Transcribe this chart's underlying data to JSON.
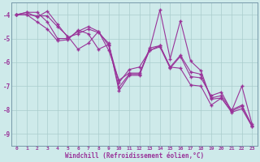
{
  "x": [
    0,
    1,
    2,
    3,
    4,
    5,
    6,
    7,
    8,
    9,
    10,
    11,
    12,
    13,
    14,
    15,
    16,
    17,
    18,
    19,
    20,
    21,
    22,
    23
  ],
  "line1": [
    -4.0,
    -3.9,
    -4.1,
    -3.85,
    -4.4,
    -4.95,
    -4.8,
    -4.6,
    -4.75,
    -5.2,
    -7.2,
    -6.55,
    -6.55,
    -5.45,
    -3.8,
    -5.85,
    -4.25,
    -5.95,
    -6.35,
    -7.55,
    -7.5,
    -8.05,
    -7.0,
    -8.6
  ],
  "line2": [
    -4.0,
    -4.0,
    -4.3,
    -4.6,
    -5.1,
    -5.05,
    -4.65,
    -4.8,
    -5.45,
    -5.25,
    -6.85,
    -6.3,
    -6.2,
    -5.5,
    -5.35,
    -6.25,
    -5.75,
    -6.6,
    -6.65,
    -7.4,
    -7.25,
    -8.05,
    -7.85,
    -8.7
  ],
  "line3": [
    -4.0,
    -4.0,
    -4.05,
    -4.05,
    -4.5,
    -4.9,
    -5.45,
    -5.2,
    -4.7,
    -5.5,
    -6.75,
    -6.45,
    -6.45,
    -5.5,
    -5.3,
    -6.2,
    -6.25,
    -6.95,
    -7.0,
    -7.8,
    -7.5,
    -8.1,
    -7.95,
    -8.7
  ],
  "line4": [
    -4.0,
    -3.9,
    -3.9,
    -4.3,
    -5.0,
    -5.0,
    -4.7,
    -4.5,
    -4.7,
    -5.3,
    -7.05,
    -6.5,
    -6.5,
    -5.4,
    -5.3,
    -6.2,
    -5.7,
    -6.4,
    -6.5,
    -7.5,
    -7.4,
    -8.0,
    -7.8,
    -8.65
  ],
  "line_color": "#993399",
  "bg_color": "#ceeaea",
  "grid_color": "#aacccc",
  "xlabel": "Windchill (Refroidissement éolien,°C)",
  "ylim": [
    -9.5,
    -3.5
  ],
  "yticks": [
    -9,
    -8,
    -7,
    -6,
    -5,
    -4
  ],
  "xlim": [
    -0.5,
    23.5
  ]
}
